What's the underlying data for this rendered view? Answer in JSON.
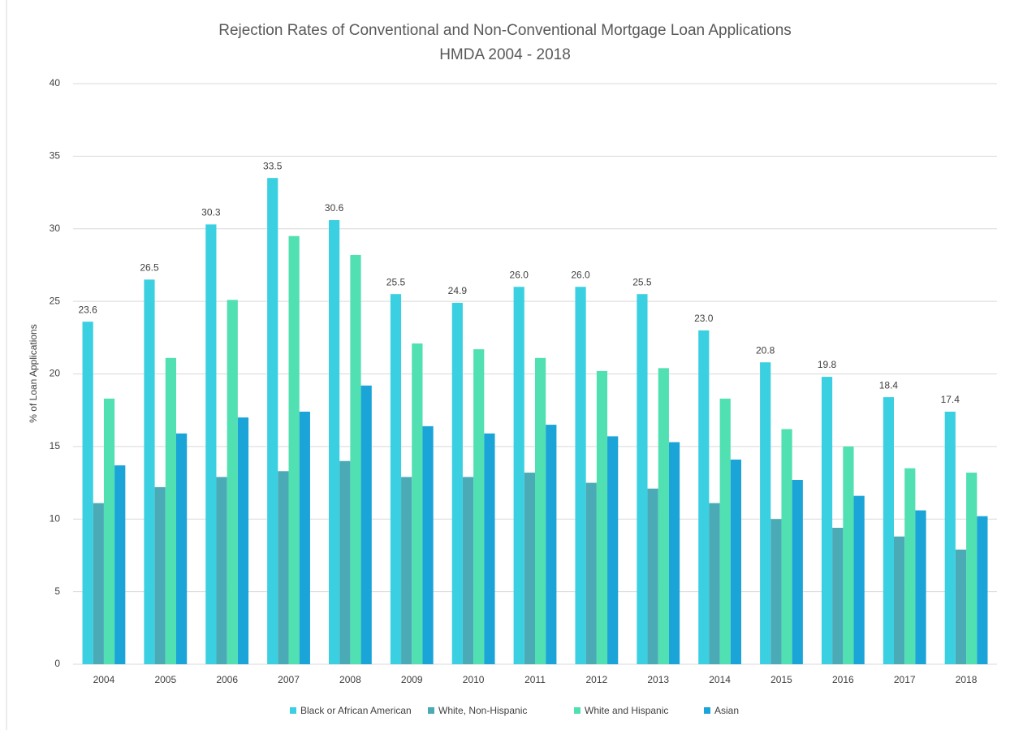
{
  "chart_data": {
    "type": "bar",
    "title": "Rejection Rates of Conventional and Non-Conventional Mortgage Loan Applications",
    "subtitle": "HMDA 2004 - 2018",
    "y_label": "% of Loan Applications",
    "categories": [
      "2004",
      "2005",
      "2006",
      "2007",
      "2008",
      "2009",
      "2010",
      "2011",
      "2012",
      "2013",
      "2014",
      "2015",
      "2016",
      "2017",
      "2018"
    ],
    "series": [
      {
        "name": "Black or African American",
        "color": "#3bd0e1",
        "values": [
          23.6,
          26.5,
          30.3,
          33.5,
          30.6,
          25.5,
          24.9,
          26.0,
          26.0,
          25.5,
          23.0,
          20.8,
          19.8,
          18.4,
          17.4
        ],
        "value_labels": [
          "23.6",
          "26.5",
          "30.3",
          "33.5",
          "30.6",
          "25.5",
          "24.9",
          "26.0",
          "26.0",
          "25.5",
          "23.0",
          "20.8",
          "19.8",
          "18.4",
          "17.4"
        ]
      },
      {
        "name": "White, Non-Hispanic",
        "color": "#4aaab6",
        "values": [
          11.1,
          12.2,
          12.9,
          13.3,
          14.0,
          12.9,
          12.9,
          13.2,
          12.5,
          12.1,
          11.1,
          10.0,
          9.4,
          8.8,
          7.9
        ]
      },
      {
        "name": "White and Hispanic",
        "color": "#50e0b2",
        "values": [
          18.3,
          21.1,
          25.1,
          29.5,
          28.2,
          22.1,
          21.7,
          21.1,
          20.2,
          20.4,
          18.3,
          16.2,
          15.0,
          13.5,
          13.2
        ]
      },
      {
        "name": "Asian",
        "color": "#1aa4d7",
        "values": [
          13.7,
          15.9,
          17.0,
          17.4,
          19.2,
          16.4,
          15.9,
          16.5,
          15.7,
          15.3,
          14.1,
          12.7,
          11.6,
          10.6,
          10.2
        ]
      }
    ],
    "ylim": [
      0,
      40
    ],
    "yticks": [
      0,
      5,
      10,
      15,
      20,
      25,
      30,
      35,
      40
    ],
    "grid": true,
    "legend": "bottom"
  }
}
